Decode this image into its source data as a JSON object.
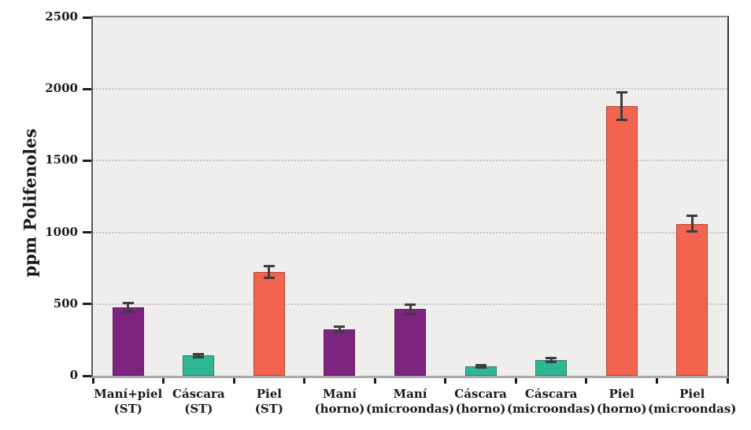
{
  "chart_data": {
    "type": "bar",
    "title": "",
    "xlabel": "",
    "ylabel": "ppm Polifenoles",
    "ylim": [
      0,
      2500
    ],
    "yticks": [
      0,
      500,
      1000,
      1500,
      2000,
      2500
    ],
    "grid": "horizontal dotted gridlines at 500, 1000, 1500, 2000",
    "legend": "none",
    "categories": [
      [
        "Maní+piel",
        "(ST)"
      ],
      [
        "Cáscara",
        "(ST)"
      ],
      [
        "Piel",
        "(ST)"
      ],
      [
        "Maní",
        "(horno)"
      ],
      [
        "Maní",
        "(microondas)"
      ],
      [
        "Cáscara",
        "(horno)"
      ],
      [
        "Cáscara",
        "(microondas)"
      ],
      [
        "Piel",
        "(horno)"
      ],
      [
        "Piel",
        "(microondas)"
      ]
    ],
    "series": [
      {
        "name": "ppm Polifenoles",
        "values": [
          475,
          140,
          725,
          325,
          465,
          65,
          110,
          1880,
          1060
        ],
        "errors": [
          30,
          10,
          40,
          20,
          32,
          8,
          12,
          95,
          55
        ]
      }
    ],
    "bar_colors": [
      "#7c2480",
      "#2db795",
      "#f2644f",
      "#7c2480",
      "#7c2480",
      "#2db795",
      "#2db795",
      "#f2644f",
      "#f2644f"
    ],
    "color_legend_semantics": {
      "#7c2480": "Maní / Maní+piel",
      "#2db795": "Cáscara",
      "#f2644f": "Piel"
    },
    "errorbar_color": "#3d3d3d",
    "plot_background": "#efeeec",
    "page_background": "#ffffff",
    "gridline_color": "#c3c2c0"
  }
}
